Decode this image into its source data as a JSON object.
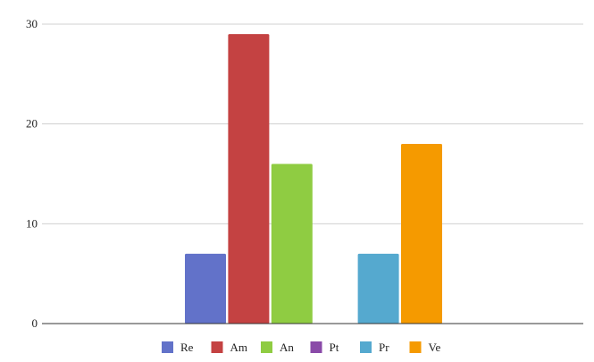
{
  "chart_data": {
    "type": "bar",
    "title": "",
    "xlabel": "",
    "ylabel": "",
    "ylim": [
      0,
      30
    ],
    "yticks": [
      0,
      10,
      20,
      30
    ],
    "grid": true,
    "legend_position": "bottom",
    "series": [
      {
        "name": "Re",
        "value": 7,
        "color": "#6272c9"
      },
      {
        "name": "Am",
        "value": 29,
        "color": "#c44242"
      },
      {
        "name": "An",
        "value": 16,
        "color": "#8fcc42"
      },
      {
        "name": "Pt",
        "value": 0,
        "color": "#8a4aa8"
      },
      {
        "name": "Pr",
        "value": 7,
        "color": "#55a9cf"
      },
      {
        "name": "Ve",
        "value": 18,
        "color": "#f59a00"
      }
    ]
  }
}
